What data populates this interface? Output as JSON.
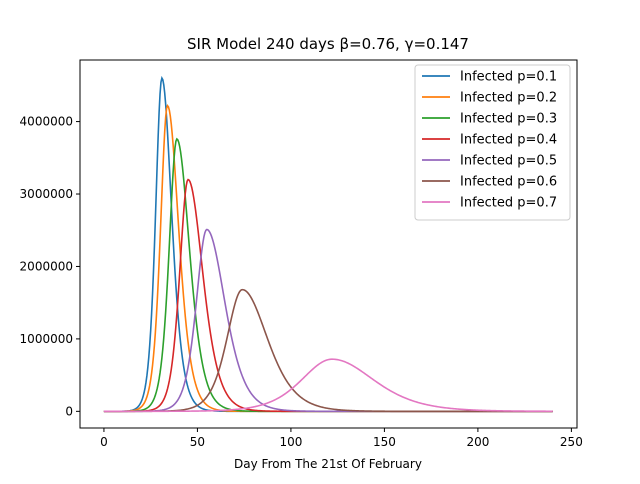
{
  "chart_data": {
    "type": "line",
    "title": "SIR Model 240 days β=0.76, γ=0.147",
    "xlabel": "Day From The 21st Of February",
    "ylabel": "",
    "xlim": [
      -12.8,
      253
    ],
    "ylim": [
      -230000,
      4850000
    ],
    "xticks": [
      0,
      50,
      100,
      150,
      200,
      250
    ],
    "xtick_labels": [
      "0",
      "50",
      "100",
      "150",
      "200",
      "250"
    ],
    "yticks": [
      0,
      1000000,
      2000000,
      3000000,
      4000000
    ],
    "ytick_labels": [
      "0",
      "1000000",
      "2000000",
      "3000000",
      "4000000"
    ],
    "grid": false,
    "legend_position": "top-right",
    "x_range": [
      0,
      240
    ],
    "series": [
      {
        "name": "Infected p=0.1",
        "color": "#1f77b4",
        "peak_day": 31,
        "peak_value": 4600000,
        "rise_width": 4.5,
        "fall_width": 7.0
      },
      {
        "name": "Infected p=0.2",
        "color": "#ff7f0e",
        "peak_day": 34,
        "peak_value": 4220000,
        "rise_width": 5.0,
        "fall_width": 8.0
      },
      {
        "name": "Infected p=0.3",
        "color": "#2ca02c",
        "peak_day": 39,
        "peak_value": 3760000,
        "rise_width": 5.5,
        "fall_width": 9.0
      },
      {
        "name": "Infected p=0.4",
        "color": "#d62728",
        "peak_day": 45,
        "peak_value": 3200000,
        "rise_width": 6.0,
        "fall_width": 10.5
      },
      {
        "name": "Infected p=0.5",
        "color": "#9467bd",
        "peak_day": 55,
        "peak_value": 2510000,
        "rise_width": 7.5,
        "fall_width": 13.0
      },
      {
        "name": "Infected p=0.6",
        "color": "#8c564b",
        "peak_day": 74,
        "peak_value": 1680000,
        "rise_width": 11.0,
        "fall_width": 18.0
      },
      {
        "name": "Infected p=0.7",
        "color": "#e377c2",
        "peak_day": 122,
        "peak_value": 720000,
        "rise_width": 22.0,
        "fall_width": 30.0
      }
    ]
  }
}
